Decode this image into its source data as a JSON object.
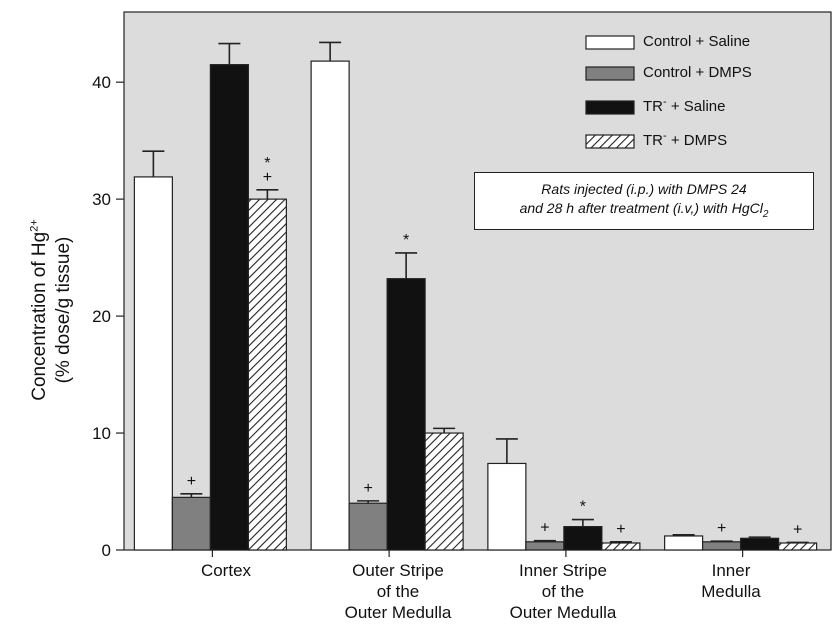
{
  "chart_data": {
    "type": "bar",
    "ylabel_line1": "Concentration of Hg",
    "ylabel_line1_sup": "2+",
    "ylabel_line2": "(% dose/g tissue)",
    "ylim": [
      0,
      46
    ],
    "yticks": [
      0,
      10,
      20,
      30,
      40
    ],
    "grid": false,
    "legend_placement": "top-right",
    "categories": [
      [
        "Cortex"
      ],
      [
        "Outer Stripe",
        "of the",
        "Outer Medulla"
      ],
      [
        "Inner Stripe",
        "of the",
        "Outer Medulla"
      ],
      [
        "Inner",
        "Medulla"
      ]
    ],
    "series": [
      {
        "name": "Control + Saline",
        "legend_main": "Control + Saline",
        "legend_sup": "",
        "legend_tail": "",
        "fill": "white",
        "values": [
          31.9,
          41.8,
          7.4,
          1.2
        ],
        "errors": [
          2.2,
          1.6,
          2.1,
          0.1
        ],
        "marks": [
          "",
          "",
          "",
          ""
        ]
      },
      {
        "name": "Control + DMPS",
        "legend_main": "Control + DMPS",
        "legend_sup": "",
        "legend_tail": "",
        "fill": "gray",
        "values": [
          4.5,
          4.0,
          0.7,
          0.7
        ],
        "errors": [
          0.3,
          0.2,
          0.1,
          0.05
        ],
        "marks": [
          "+",
          "+",
          "+",
          "+"
        ]
      },
      {
        "name": "TR- + Saline",
        "legend_main": "TR",
        "legend_sup": "-",
        "legend_tail": " + Saline",
        "fill": "black",
        "values": [
          41.5,
          23.2,
          2.0,
          1.0
        ],
        "errors": [
          1.8,
          2.2,
          0.6,
          0.1
        ],
        "marks": [
          "",
          "*",
          "*",
          ""
        ]
      },
      {
        "name": "TR- + DMPS",
        "legend_main": "TR",
        "legend_sup": "-",
        "legend_tail": " + DMPS",
        "fill": "hatch",
        "values": [
          30.0,
          10.0,
          0.6,
          0.6
        ],
        "errors": [
          0.8,
          0.4,
          0.1,
          0.05
        ],
        "marks": [
          "*+",
          "",
          "+",
          "+"
        ]
      }
    ],
    "annotation": {
      "line1": "Rats injected (i.p.) with DMPS 24",
      "line2_main": "and 28 h after treatment (i.v,) with HgCl",
      "line2_sub": "2"
    },
    "colors": {
      "plot_bg": "#dcdcdc",
      "gray_bar": "#808080",
      "black_bar": "#111111",
      "white_bar": "#ffffff"
    }
  }
}
